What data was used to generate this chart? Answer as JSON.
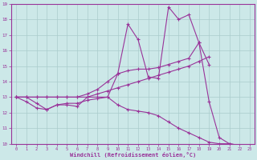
{
  "xlabel": "Windchill (Refroidissement éolien,°C)",
  "background_color": "#cce8e8",
  "line_color": "#993399",
  "grid_color": "#aacccc",
  "xlim": [
    -0.5,
    23.5
  ],
  "ylim": [
    10,
    19
  ],
  "xticks": [
    0,
    1,
    2,
    3,
    4,
    5,
    6,
    7,
    8,
    9,
    10,
    11,
    12,
    13,
    14,
    15,
    16,
    17,
    18,
    19,
    20,
    21,
    22,
    23
  ],
  "yticks": [
    10,
    11,
    12,
    13,
    14,
    15,
    16,
    17,
    18,
    19
  ],
  "series": [
    {
      "x": [
        0,
        1,
        2,
        3,
        4,
        5,
        6,
        7,
        8,
        9,
        10,
        11,
        12,
        13,
        14,
        15,
        16,
        17,
        18,
        19,
        20,
        21,
        22
      ],
      "y": [
        13.0,
        13.0,
        12.6,
        12.2,
        12.5,
        12.5,
        12.4,
        13.0,
        13.0,
        13.0,
        14.5,
        17.7,
        16.7,
        14.3,
        14.2,
        18.8,
        18.0,
        18.3,
        16.5,
        12.7,
        10.4,
        10.0,
        9.9
      ]
    },
    {
      "x": [
        0,
        1,
        2,
        3,
        4,
        5,
        6,
        7,
        8,
        9,
        10,
        11,
        12,
        13,
        14,
        15,
        16,
        17,
        18,
        19
      ],
      "y": [
        13.0,
        13.0,
        13.0,
        13.0,
        13.0,
        13.0,
        13.0,
        13.2,
        13.5,
        14.0,
        14.5,
        14.7,
        14.8,
        14.8,
        14.9,
        15.1,
        15.3,
        15.5,
        16.5,
        15.1
      ]
    },
    {
      "x": [
        0,
        1,
        2,
        3,
        4,
        5,
        6,
        7,
        8,
        9,
        10,
        11,
        12,
        13,
        14,
        15,
        16,
        17,
        18,
        19
      ],
      "y": [
        13.0,
        13.0,
        13.0,
        13.0,
        13.0,
        13.0,
        13.0,
        13.0,
        13.2,
        13.4,
        13.6,
        13.8,
        14.0,
        14.2,
        14.4,
        14.6,
        14.8,
        15.0,
        15.3,
        15.6
      ]
    },
    {
      "x": [
        0,
        1,
        2,
        3,
        4,
        5,
        6,
        7,
        8,
        9,
        10,
        11,
        12,
        13,
        14,
        15,
        16,
        17,
        18,
        19,
        20,
        21,
        22
      ],
      "y": [
        13.0,
        12.7,
        12.3,
        12.2,
        12.5,
        12.6,
        12.6,
        12.8,
        12.9,
        13.0,
        12.5,
        12.2,
        12.1,
        12.0,
        11.8,
        11.4,
        11.0,
        10.7,
        10.4,
        10.1,
        10.0,
        10.0,
        9.9
      ]
    }
  ]
}
